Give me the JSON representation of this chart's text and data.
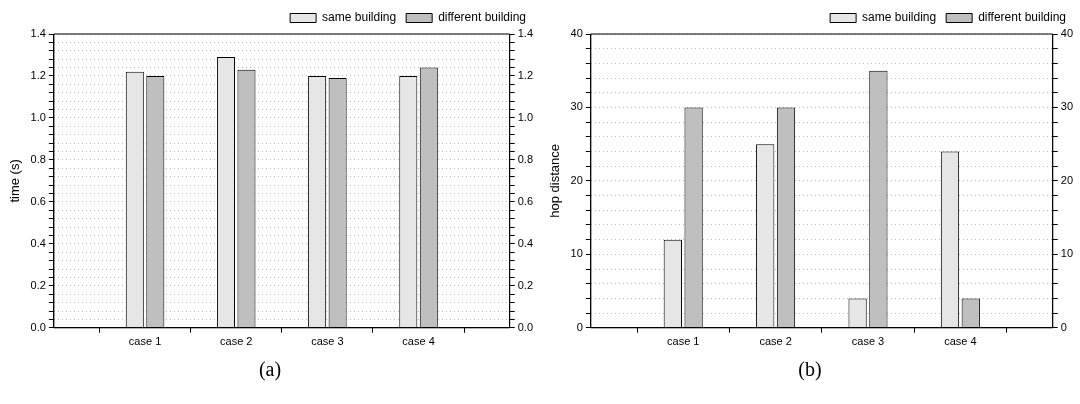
{
  "chart_data": [
    {
      "type": "bar",
      "ylabel": "time (s)",
      "categories": [
        "case 1",
        "case 2",
        "case 3",
        "case 4"
      ],
      "series": [
        {
          "name": "same building",
          "color": "#e6e6e6",
          "values": [
            1.22,
            1.29,
            1.2,
            1.2
          ]
        },
        {
          "name": "different building",
          "color": "#bfbfbf",
          "values": [
            1.2,
            1.23,
            1.19,
            1.24
          ]
        }
      ],
      "ylim": [
        0,
        1.4
      ],
      "yticks": [
        {
          "value": 0,
          "label": "0.0"
        },
        {
          "value": 0.04,
          "label": null
        },
        {
          "value": 0.08,
          "label": null
        },
        {
          "value": 0.12,
          "label": null
        },
        {
          "value": 0.16,
          "label": null
        },
        {
          "value": 0.2,
          "label": "0.2"
        },
        {
          "value": 0.24,
          "label": null
        },
        {
          "value": 0.28,
          "label": null
        },
        {
          "value": 0.32,
          "label": null
        },
        {
          "value": 0.36,
          "label": null
        },
        {
          "value": 0.4,
          "label": "0.4"
        },
        {
          "value": 0.44,
          "label": null
        },
        {
          "value": 0.48,
          "label": null
        },
        {
          "value": 0.52,
          "label": null
        },
        {
          "value": 0.56,
          "label": null
        },
        {
          "value": 0.6,
          "label": "0.6"
        },
        {
          "value": 0.64,
          "label": null
        },
        {
          "value": 0.68,
          "label": null
        },
        {
          "value": 0.72,
          "label": null
        },
        {
          "value": 0.76,
          "label": null
        },
        {
          "value": 0.8,
          "label": "0.8"
        },
        {
          "value": 0.84,
          "label": null
        },
        {
          "value": 0.88,
          "label": null
        },
        {
          "value": 0.92,
          "label": null
        },
        {
          "value": 0.96,
          "label": null
        },
        {
          "value": 1.0,
          "label": "1.0"
        },
        {
          "value": 1.04,
          "label": null
        },
        {
          "value": 1.08,
          "label": null
        },
        {
          "value": 1.12,
          "label": null
        },
        {
          "value": 1.16,
          "label": null
        },
        {
          "value": 1.2,
          "label": "1.2"
        },
        {
          "value": 1.24,
          "label": null
        },
        {
          "value": 1.28,
          "label": null
        },
        {
          "value": 1.32,
          "label": null
        },
        {
          "value": 1.36,
          "label": null
        },
        {
          "value": 1.4,
          "label": "1.4"
        }
      ],
      "y2lim": [
        0,
        1.4
      ],
      "y2ticks": [
        {
          "value": 0,
          "label": "0.0"
        },
        {
          "value": 0.04,
          "label": null
        },
        {
          "value": 0.08,
          "label": null
        },
        {
          "value": 0.12,
          "label": null
        },
        {
          "value": 0.16,
          "label": null
        },
        {
          "value": 0.2,
          "label": "0.2"
        },
        {
          "value": 0.24,
          "label": null
        },
        {
          "value": 0.28,
          "label": null
        },
        {
          "value": 0.32,
          "label": null
        },
        {
          "value": 0.36,
          "label": null
        },
        {
          "value": 0.4,
          "label": "0.4"
        },
        {
          "value": 0.44,
          "label": null
        },
        {
          "value": 0.48,
          "label": null
        },
        {
          "value": 0.52,
          "label": null
        },
        {
          "value": 0.56,
          "label": null
        },
        {
          "value": 0.6,
          "label": "0.6"
        },
        {
          "value": 0.64,
          "label": null
        },
        {
          "value": 0.68,
          "label": null
        },
        {
          "value": 0.72,
          "label": null
        },
        {
          "value": 0.76,
          "label": null
        },
        {
          "value": 0.8,
          "label": "0.8"
        },
        {
          "value": 0.84,
          "label": null
        },
        {
          "value": 0.88,
          "label": null
        },
        {
          "value": 0.92,
          "label": null
        },
        {
          "value": 0.96,
          "label": null
        },
        {
          "value": 1.0,
          "label": "1.0"
        },
        {
          "value": 1.04,
          "label": null
        },
        {
          "value": 1.08,
          "label": null
        },
        {
          "value": 1.12,
          "label": null
        },
        {
          "value": 1.16,
          "label": null
        },
        {
          "value": 1.2,
          "label": "1.2"
        },
        {
          "value": 1.24,
          "label": null
        },
        {
          "value": 1.28,
          "label": null
        },
        {
          "value": 1.32,
          "label": null
        },
        {
          "value": 1.36,
          "label": null
        },
        {
          "value": 1.4,
          "label": "1.4"
        }
      ],
      "grid": "y",
      "legend": "top right",
      "annotations": [
        "(a)"
      ]
    },
    {
      "type": "bar",
      "ylabel": "hop distance",
      "categories": [
        "case 1",
        "case 2",
        "case 3",
        "case 4"
      ],
      "series": [
        {
          "name": "same building",
          "color": "#e6e6e6",
          "values": [
            12,
            25,
            4,
            24
          ]
        },
        {
          "name": "different building",
          "color": "#bfbfbf",
          "values": [
            30,
            30,
            35,
            4
          ]
        }
      ],
      "ylim": [
        0,
        40
      ],
      "yticks": [
        0,
        {
          "value": 2,
          "label": null
        },
        {
          "value": 4,
          "label": null
        },
        {
          "value": 6,
          "label": null
        },
        {
          "value": 8,
          "label": null
        },
        10,
        {
          "value": 12,
          "label": null
        },
        {
          "value": 14,
          "label": null
        },
        {
          "value": 16,
          "label": null
        },
        {
          "value": 18,
          "label": null
        },
        20,
        {
          "value": 22,
          "label": null
        },
        {
          "value": 24,
          "label": null
        },
        {
          "value": 26,
          "label": null
        },
        {
          "value": 28,
          "label": null
        },
        30,
        {
          "value": 32,
          "label": null
        },
        {
          "value": 34,
          "label": null
        },
        {
          "value": 36,
          "label": null
        },
        {
          "value": 38,
          "label": null
        },
        40
      ],
      "y2lim": [
        0,
        40
      ],
      "y2ticks": [
        0,
        {
          "value": 2,
          "label": null
        },
        {
          "value": 4,
          "label": null
        },
        {
          "value": 6,
          "label": null
        },
        {
          "value": 8,
          "label": null
        },
        10,
        {
          "value": 12,
          "label": null
        },
        {
          "value": 14,
          "label": null
        },
        {
          "value": 16,
          "label": null
        },
        {
          "value": 18,
          "label": null
        },
        20,
        {
          "value": 22,
          "label": null
        },
        {
          "value": 24,
          "label": null
        },
        {
          "value": 26,
          "label": null
        },
        {
          "value": 28,
          "label": null
        },
        30,
        {
          "value": 32,
          "label": null
        },
        {
          "value": 34,
          "label": null
        },
        {
          "value": 36,
          "label": null
        },
        {
          "value": 38,
          "label": null
        },
        40
      ],
      "grid": "y",
      "legend": "top right",
      "annotations": [
        "(b)"
      ]
    }
  ]
}
